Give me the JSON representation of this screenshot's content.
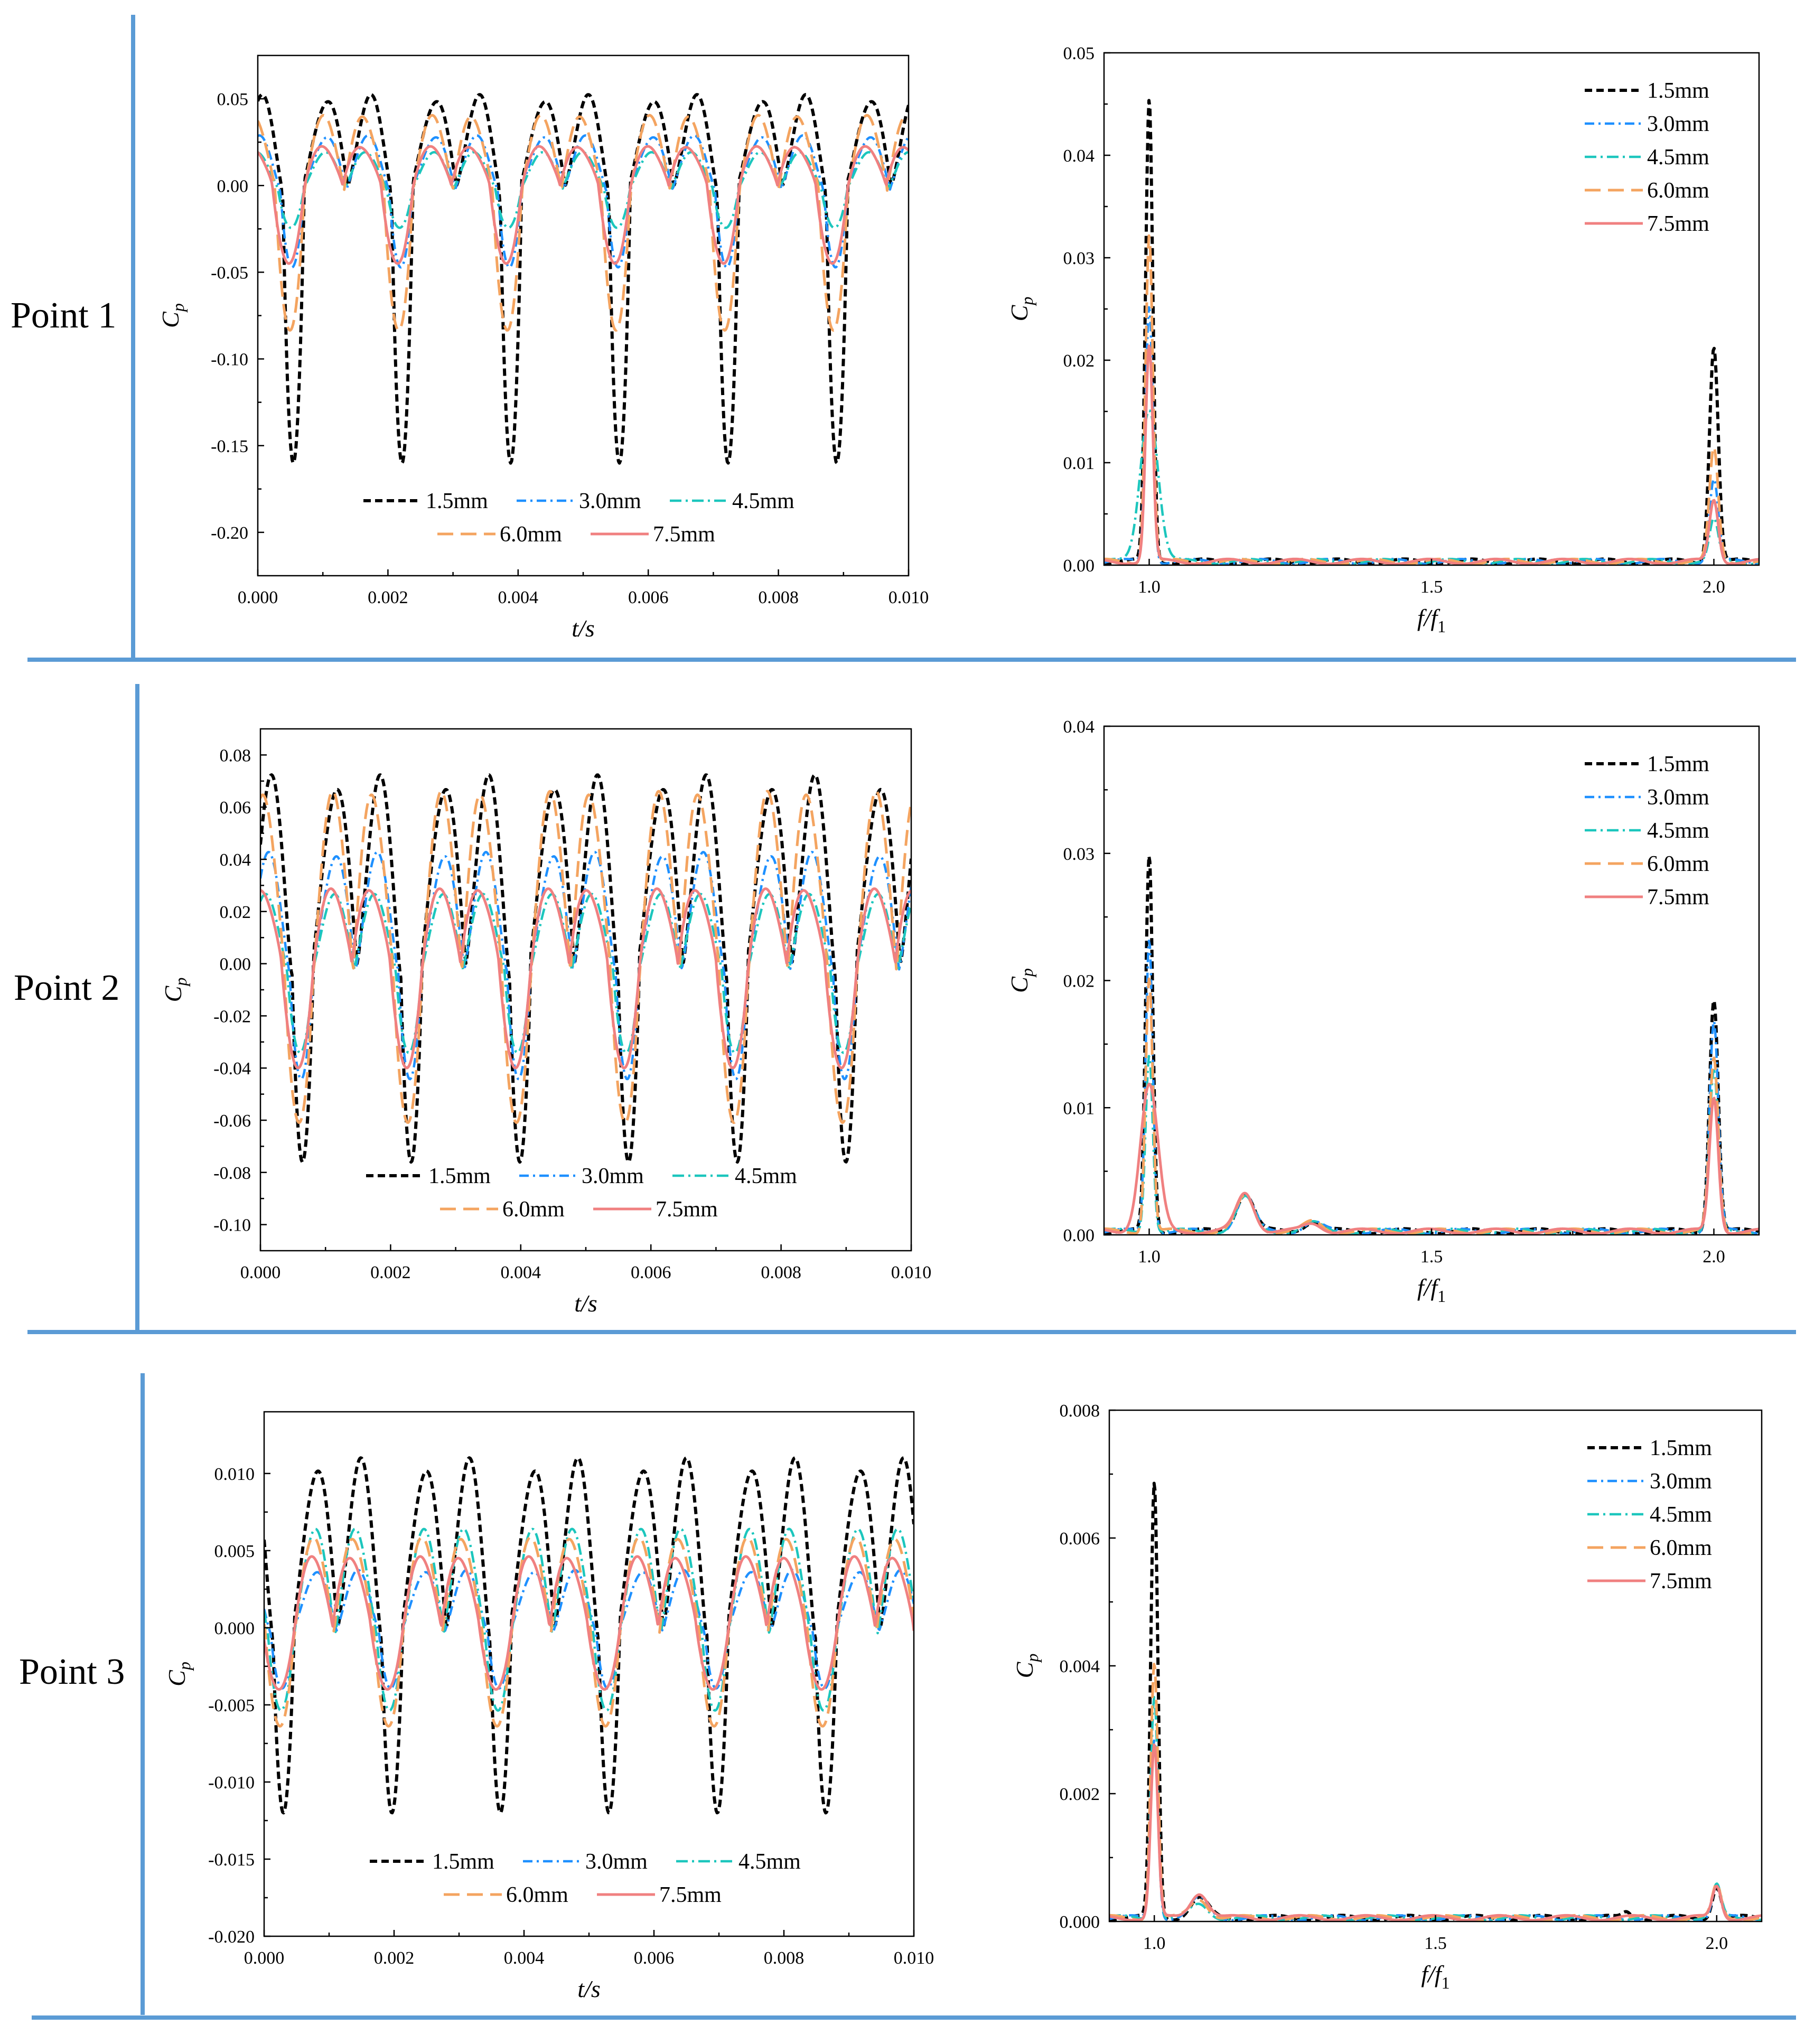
{
  "row_labels": [
    "Point 1",
    "Point 2",
    "Point 3"
  ],
  "legend_labels": [
    "1.5mm",
    "3.0mm",
    "4.5mm",
    "6.0mm",
    "7.5mm"
  ],
  "colors": {
    "s15": "#000000",
    "s30": "#1e90ff",
    "s45": "#1cc6bd",
    "s60": "#f4a460",
    "s75": "#f08080",
    "separator": "#5b9bd5"
  },
  "chart_data": [
    {
      "id": "p1_time",
      "type": "line",
      "point": "Point 1",
      "xlabel": "t/s",
      "ylabel": "Cp",
      "xlim": [
        0,
        0.01
      ],
      "ylim": [
        -0.225,
        0.075
      ],
      "xticks": [
        0,
        0.002,
        0.004,
        0.006,
        0.008,
        0.01
      ],
      "xtick_labels": [
        "0.000",
        "0.002",
        "0.004",
        "0.006",
        "0.008",
        "0.010"
      ],
      "yticks": [
        -0.2,
        -0.15,
        -0.1,
        -0.05,
        0,
        0.05
      ],
      "ytick_labels": [
        "-0.20",
        "-0.15",
        "-0.10",
        "-0.05",
        "0.00",
        "0.05"
      ],
      "legend_location": "bottom-center",
      "period": 0.00167,
      "phase": 0.00055,
      "series": [
        {
          "name": "1.5mm",
          "max": 0.05,
          "min": -0.16
        },
        {
          "name": "3.0mm",
          "max": 0.027,
          "min": -0.048
        },
        {
          "name": "4.5mm",
          "max": 0.018,
          "min": -0.025
        },
        {
          "name": "6.0mm",
          "max": 0.038,
          "min": -0.085
        },
        {
          "name": "7.5mm",
          "max": 0.022,
          "min": -0.045
        }
      ]
    },
    {
      "id": "p1_freq",
      "type": "line",
      "point": "Point 1",
      "xlabel": "f/f1",
      "ylabel": "Cp",
      "xlim": [
        0.92,
        2.08
      ],
      "ylim": [
        0,
        0.05
      ],
      "xticks": [
        1.0,
        1.5,
        2.0
      ],
      "xtick_labels": [
        "1.0",
        "1.5",
        "2.0"
      ],
      "yticks": [
        0,
        0.01,
        0.02,
        0.03,
        0.04,
        0.05
      ],
      "ytick_labels": [
        "0.00",
        "0.01",
        "0.02",
        "0.03",
        "0.04",
        "0.05"
      ],
      "legend_location": "top-right",
      "series": [
        {
          "name": "1.5mm",
          "peaks": [
            [
              1.0,
              0.045
            ],
            [
              2.0,
              0.021
            ]
          ]
        },
        {
          "name": "3.0mm",
          "peaks": [
            [
              1.0,
              0.025
            ],
            [
              2.0,
              0.008
            ]
          ]
        },
        {
          "name": "4.5mm",
          "peaks": [
            [
              1.0,
              0.015
            ],
            [
              2.0,
              0.004
            ]
          ]
        },
        {
          "name": "6.0mm",
          "peaks": [
            [
              1.0,
              0.032
            ],
            [
              2.0,
              0.011
            ]
          ]
        },
        {
          "name": "7.5mm",
          "peaks": [
            [
              1.0,
              0.021
            ],
            [
              2.0,
              0.006
            ]
          ]
        }
      ]
    },
    {
      "id": "p2_time",
      "type": "line",
      "point": "Point 2",
      "xlabel": "t/s",
      "ylabel": "Cp",
      "xlim": [
        0,
        0.01
      ],
      "ylim": [
        -0.11,
        0.09
      ],
      "xticks": [
        0,
        0.002,
        0.004,
        0.006,
        0.008,
        0.01
      ],
      "xtick_labels": [
        "0.000",
        "0.002",
        "0.004",
        "0.006",
        "0.008",
        "0.010"
      ],
      "yticks": [
        -0.1,
        -0.08,
        -0.06,
        -0.04,
        -0.02,
        0,
        0.02,
        0.04,
        0.06,
        0.08
      ],
      "ytick_labels": [
        "-0.10",
        "-0.08",
        "-0.06",
        "-0.04",
        "-0.02",
        "0.00",
        "0.02",
        "0.04",
        "0.06",
        "0.08"
      ],
      "legend_location": "bottom-center",
      "period": 0.00167,
      "phase": 0.00065,
      "series": [
        {
          "name": "1.5mm",
          "max": 0.069,
          "min": -0.076
        },
        {
          "name": "3.0mm",
          "max": 0.04,
          "min": -0.045
        },
        {
          "name": "4.5mm",
          "max": 0.025,
          "min": -0.035
        },
        {
          "name": "6.0mm",
          "max": 0.062,
          "min": -0.062
        },
        {
          "name": "7.5mm",
          "max": 0.028,
          "min": -0.04
        }
      ]
    },
    {
      "id": "p2_freq",
      "type": "line",
      "point": "Point 2",
      "xlabel": "f/f1",
      "ylabel": "Cp",
      "xlim": [
        0.92,
        2.08
      ],
      "ylim": [
        0,
        0.04
      ],
      "xticks": [
        1.0,
        1.5,
        2.0
      ],
      "xtick_labels": [
        "1.0",
        "1.5",
        "2.0"
      ],
      "yticks": [
        0,
        0.01,
        0.02,
        0.03,
        0.04
      ],
      "ytick_labels": [
        "0.00",
        "0.01",
        "0.02",
        "0.03",
        "0.04"
      ],
      "legend_location": "top-right",
      "series": [
        {
          "name": "1.5mm",
          "peaks": [
            [
              1.0,
              0.0295
            ],
            [
              1.17,
              0.003
            ],
            [
              1.29,
              0.0008
            ],
            [
              2.0,
              0.0183
            ]
          ]
        },
        {
          "name": "3.0mm",
          "peaks": [
            [
              1.0,
              0.023
            ],
            [
              1.17,
              0.0028
            ],
            [
              1.29,
              0.0007
            ],
            [
              2.0,
              0.0165
            ]
          ]
        },
        {
          "name": "4.5mm",
          "peaks": [
            [
              1.0,
              0.014
            ],
            [
              1.17,
              0.0026
            ],
            [
              1.29,
              0.0006
            ],
            [
              2.0,
              0.0125
            ]
          ]
        },
        {
          "name": "6.0mm",
          "peaks": [
            [
              1.0,
              0.02
            ],
            [
              1.17,
              0.0027
            ],
            [
              1.29,
              0.0007
            ],
            [
              2.0,
              0.0135
            ]
          ]
        },
        {
          "name": "7.5mm",
          "peaks": [
            [
              1.0,
              0.0115
            ],
            [
              1.17,
              0.003
            ],
            [
              1.29,
              0.0006
            ],
            [
              2.0,
              0.0105
            ]
          ]
        }
      ]
    },
    {
      "id": "p3_time",
      "type": "line",
      "point": "Point 3",
      "xlabel": "t/s",
      "ylabel": "Cp",
      "xlim": [
        0,
        0.01
      ],
      "ylim": [
        -0.02,
        0.014
      ],
      "xticks": [
        0,
        0.002,
        0.004,
        0.006,
        0.008,
        0.01
      ],
      "xtick_labels": [
        "0.000",
        "0.002",
        "0.004",
        "0.006",
        "0.008",
        "0.010"
      ],
      "yticks": [
        -0.02,
        -0.015,
        -0.01,
        -0.005,
        0,
        0.005,
        0.01
      ],
      "ytick_labels": [
        "-0.020",
        "-0.015",
        "-0.010",
        "-0.005",
        "0.000",
        "0.005",
        "0.010"
      ],
      "legend_location": "bottom-center",
      "period": 0.00167,
      "phase": 0.0003,
      "series": [
        {
          "name": "1.5mm",
          "max": 0.0105,
          "min": -0.012
        },
        {
          "name": "3.0mm",
          "max": 0.0035,
          "min": -0.004
        },
        {
          "name": "4.5mm",
          "max": 0.006,
          "min": -0.0055
        },
        {
          "name": "6.0mm",
          "max": 0.0055,
          "min": -0.0065
        },
        {
          "name": "7.5mm",
          "max": 0.0045,
          "min": -0.004
        }
      ]
    },
    {
      "id": "p3_freq",
      "type": "line",
      "point": "Point 3",
      "xlabel": "f/f1",
      "ylabel": "Cp",
      "xlim": [
        0.92,
        2.08
      ],
      "ylim": [
        0,
        0.008
      ],
      "xticks": [
        1.0,
        1.5,
        2.0
      ],
      "xtick_labels": [
        "1.0",
        "1.5",
        "2.0"
      ],
      "yticks": [
        0,
        0.002,
        0.004,
        0.006,
        0.008
      ],
      "ytick_labels": [
        "0.000",
        "0.002",
        "0.004",
        "0.006",
        "0.008"
      ],
      "legend_location": "top-right",
      "series": [
        {
          "name": "1.5mm",
          "peaks": [
            [
              1.0,
              0.0068
            ],
            [
              1.08,
              0.0003
            ],
            [
              1.84,
              0.0001
            ],
            [
              2.0,
              0.0005
            ]
          ]
        },
        {
          "name": "3.0mm",
          "peaks": [
            [
              1.0,
              0.0028
            ],
            [
              1.08,
              0.0003
            ],
            [
              2.0,
              0.0005
            ]
          ]
        },
        {
          "name": "4.5mm",
          "peaks": [
            [
              1.0,
              0.0035
            ],
            [
              1.08,
              0.0002
            ],
            [
              2.0,
              0.0005
            ]
          ]
        },
        {
          "name": "6.0mm",
          "peaks": [
            [
              1.0,
              0.004
            ],
            [
              1.08,
              0.0003
            ],
            [
              2.0,
              0.0005
            ]
          ]
        },
        {
          "name": "7.5mm",
          "peaks": [
            [
              1.0,
              0.0027
            ],
            [
              1.08,
              0.0004
            ],
            [
              2.0,
              0.0005
            ]
          ]
        }
      ]
    }
  ]
}
